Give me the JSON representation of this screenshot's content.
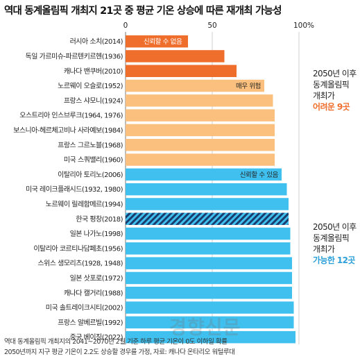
{
  "chart_data": {
    "type": "bar",
    "orientation": "horizontal",
    "title": "역대 동계올림픽 개최지 21곳 중 평균 기온 상승에 따른 재개최 가능성",
    "xlim": [
      0,
      100
    ],
    "x_ticks": [
      "0",
      "50",
      "100%"
    ],
    "categories": [
      "러시아 소치(2014)",
      "독일 가르미슈-파르텐키르헨(1936)",
      "캐나다 밴쿠버(2010)",
      "노르웨이 오슬로(1952)",
      "프랑스 샤모니(1924)",
      "오스트리아 인스브루크(1964, 1976)",
      "보스니아-헤르체고비나 사라예보(1984)",
      "프랑스 그르노블(1968)",
      "미국 스쿼밸리(1960)",
      "이탈리아 토리노(2006)",
      "미국 레이크플래시드(1932, 1980)",
      "노르웨이 릴레함메르(1994)",
      "한국 평창(2018)",
      "일본 나가노(1998)",
      "이탈리아 코르티나담페초(1956)",
      "스위스 생모리츠(1928, 1948)",
      "일본 삿포로(1972)",
      "캐나다 캘거리(1988)",
      "미국 솔트레이크시티(2002)",
      "프랑스 알베르빌(1992)",
      "중국 베이징(2022)"
    ],
    "values": [
      36,
      57,
      64,
      80,
      85,
      86,
      86,
      86,
      86,
      90,
      93,
      94,
      94,
      95,
      95,
      96,
      96,
      96,
      97,
      97,
      98
    ],
    "categories_status": [
      "unreliable",
      "unreliable",
      "unreliable",
      "high_risk",
      "high_risk",
      "high_risk",
      "high_risk",
      "high_risk",
      "high_risk",
      "reliable",
      "reliable",
      "reliable",
      "reliable",
      "reliable",
      "reliable",
      "reliable",
      "reliable",
      "reliable",
      "reliable",
      "reliable",
      "reliable"
    ],
    "highlighted": "한국 평창(2018)",
    "annotations": {
      "unreliable": "신뢰할 수 없음",
      "high_risk": "매우 위험",
      "reliable": "신뢰할 수 있음"
    },
    "colors": {
      "unreliable": "#ef6e2c",
      "high_risk": "#fbc07e",
      "reliable": "#3fc0ef",
      "highlight_stripe": "#1a3d6e",
      "group_a_text": "#ef6e2c",
      "group_b_text": "#2a9fd8"
    },
    "grid": true
  },
  "groups": {
    "a": {
      "line1": "2050년 이후",
      "line2": "동계올림픽",
      "line3": "개최가",
      "highlight": "어려운 9곳"
    },
    "b": {
      "line1": "2050년 이후",
      "line2": "동계올림픽",
      "line3": "개최가",
      "highlight": "가능한 12곳"
    }
  },
  "footnote": {
    "line1": "역대 동계올림픽 개최지의 2041~2070년 2월 기준 하루 평균 기온이 0도 이하일 확률",
    "line2": "2050년까지 지구 평균 기온이 2.2도 상승할 경우를 가정, 자료: 캐나다 온타리오 워털루대"
  },
  "watermark": "경향신문"
}
